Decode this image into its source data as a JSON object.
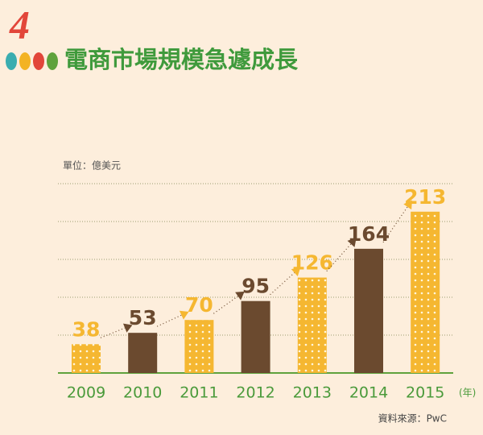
{
  "chart_data": {
    "type": "bar",
    "section_number": "4",
    "title": "電商市場規模急遽成長",
    "unit_label": "單位：億美元",
    "x_unit_label": "(年)",
    "source": "資料來源：PwC",
    "categories": [
      "2009",
      "2010",
      "2011",
      "2012",
      "2013",
      "2014",
      "2015"
    ],
    "values": [
      38,
      53,
      70,
      95,
      126,
      164,
      213
    ],
    "colors": [
      "#f5b731",
      "#6b4a2f",
      "#f5b731",
      "#6b4a2f",
      "#f5b731",
      "#6b4a2f",
      "#f5b731"
    ],
    "ylim": [
      0,
      250
    ],
    "yticks": [
      50,
      100,
      150,
      200,
      250
    ],
    "grid": true
  }
}
